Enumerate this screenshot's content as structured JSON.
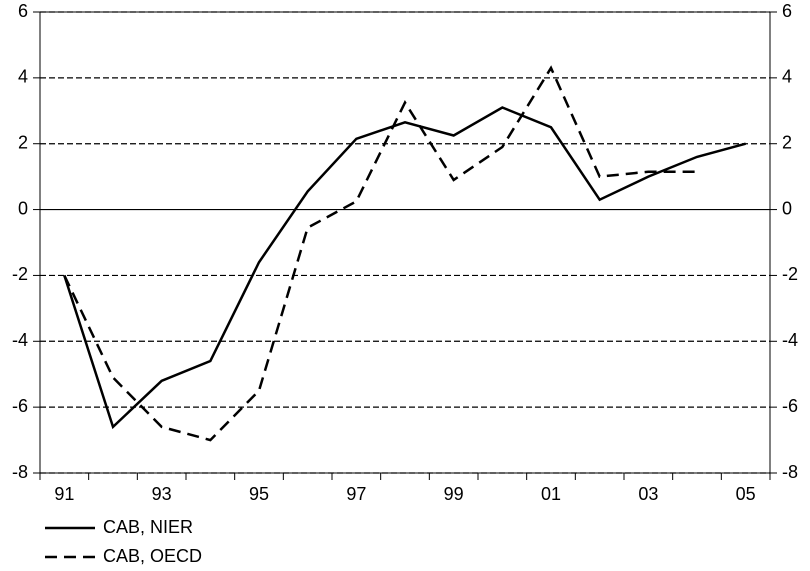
{
  "chart_data": {
    "type": "line",
    "categories": [
      "91",
      null,
      "93",
      null,
      "95",
      null,
      "97",
      null,
      "99",
      null,
      "01",
      null,
      "03",
      null,
      "05"
    ],
    "series": [
      {
        "name": "CAB, NIER",
        "color": "#000000",
        "dash": "solid",
        "values": [
          -2.0,
          -6.6,
          -5.2,
          -4.6,
          -1.6,
          0.55,
          2.15,
          2.65,
          2.25,
          3.1,
          2.5,
          0.3,
          1.0,
          1.6,
          2.0
        ]
      },
      {
        "name": "CAB, OECD",
        "color": "#000000",
        "dash": "dashed",
        "values": [
          -2.0,
          -5.1,
          -6.6,
          -7.0,
          -5.5,
          -0.55,
          0.25,
          3.25,
          0.9,
          1.9,
          4.3,
          1.0,
          1.15,
          1.15,
          null
        ]
      }
    ],
    "ylim": [
      -8,
      6
    ],
    "yticks": [
      -8,
      -6,
      -4,
      -2,
      0,
      2,
      4,
      6
    ],
    "y2lim": [
      -8,
      6
    ],
    "y2ticks": [
      -8,
      -6,
      -4,
      -2,
      0,
      2,
      4,
      6
    ],
    "grid": true,
    "legend": "bottom-left"
  }
}
